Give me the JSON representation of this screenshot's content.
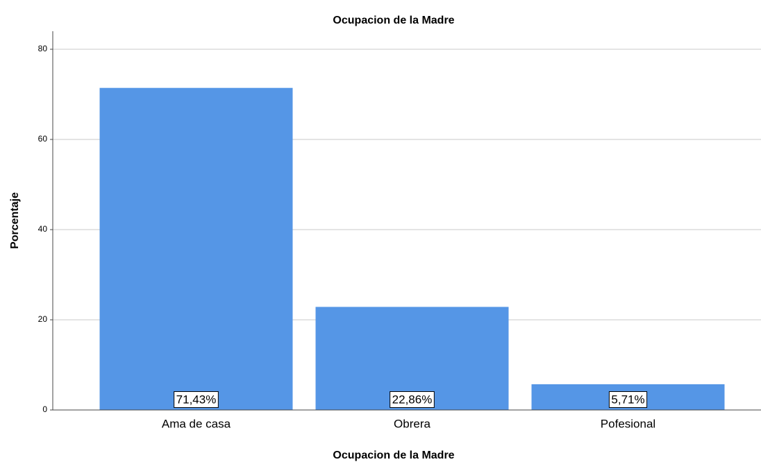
{
  "chart_data": {
    "type": "bar",
    "title": "Ocupacion de la Madre",
    "x_label": "Ocupacion de la Madre",
    "y_label": "Porcentaje",
    "categories": [
      "Ama de casa",
      "Obrera",
      "Pofesional"
    ],
    "values": [
      71.43,
      22.86,
      5.71
    ],
    "value_labels": [
      "71,43%",
      "22,86%",
      "5,71%"
    ],
    "color": "#5596e6",
    "ylim": [
      0,
      84
    ],
    "yticks": [
      0,
      20,
      40,
      60,
      80
    ],
    "grid": true
  }
}
